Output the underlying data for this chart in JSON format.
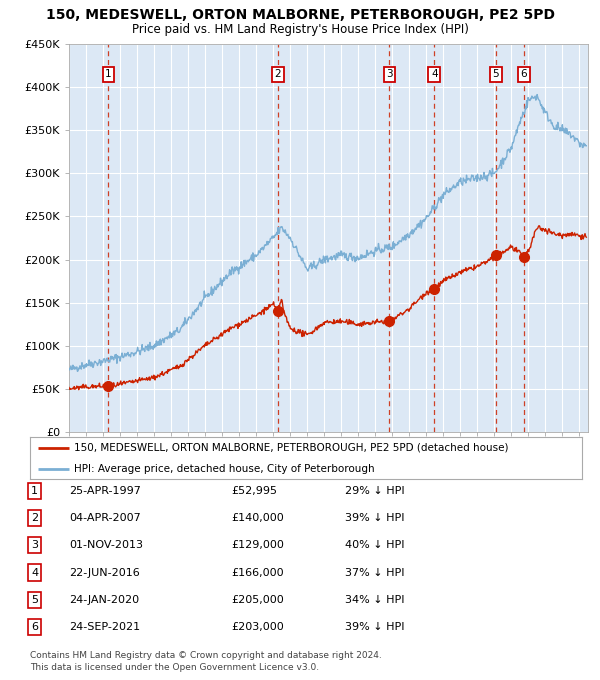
{
  "title1": "150, MEDESWELL, ORTON MALBORNE, PETERBOROUGH, PE2 5PD",
  "title2": "Price paid vs. HM Land Registry's House Price Index (HPI)",
  "legend_line1": "150, MEDESWELL, ORTON MALBORNE, PETERBOROUGH, PE2 5PD (detached house)",
  "legend_line2": "HPI: Average price, detached house, City of Peterborough",
  "footer1": "Contains HM Land Registry data © Crown copyright and database right 2024.",
  "footer2": "This data is licensed under the Open Government Licence v3.0.",
  "sale_points": [
    {
      "num": 1,
      "date": "25-APR-1997",
      "price": 52995,
      "pct": "29% ↓ HPI",
      "year": 1997.32
    },
    {
      "num": 2,
      "date": "04-APR-2007",
      "price": 140000,
      "pct": "39% ↓ HPI",
      "year": 2007.26
    },
    {
      "num": 3,
      "date": "01-NOV-2013",
      "price": 129000,
      "pct": "40% ↓ HPI",
      "year": 2013.83
    },
    {
      "num": 4,
      "date": "22-JUN-2016",
      "price": 166000,
      "pct": "37% ↓ HPI",
      "year": 2016.47
    },
    {
      "num": 5,
      "date": "24-JAN-2020",
      "price": 205000,
      "pct": "34% ↓ HPI",
      "year": 2020.07
    },
    {
      "num": 6,
      "date": "24-SEP-2021",
      "price": 203000,
      "pct": "39% ↓ HPI",
      "year": 2021.73
    }
  ],
  "table_rows": [
    [
      "1",
      "25-APR-1997",
      "£52,995",
      "29% ↓ HPI"
    ],
    [
      "2",
      "04-APR-2007",
      "£140,000",
      "39% ↓ HPI"
    ],
    [
      "3",
      "01-NOV-2013",
      "£129,000",
      "40% ↓ HPI"
    ],
    [
      "4",
      "22-JUN-2016",
      "£166,000",
      "37% ↓ HPI"
    ],
    [
      "5",
      "24-JAN-2020",
      "£205,000",
      "34% ↓ HPI"
    ],
    [
      "6",
      "24-SEP-2021",
      "£203,000",
      "39% ↓ HPI"
    ]
  ],
  "hpi_color": "#7bafd4",
  "sold_color": "#cc2200",
  "bg_color": "#dce8f5",
  "vline_color": "#cc2200",
  "ylim": [
    0,
    450000
  ],
  "xlim_start": 1995.0,
  "xlim_end": 2025.5,
  "yticks": [
    0,
    50000,
    100000,
    150000,
    200000,
    250000,
    300000,
    350000,
    400000,
    450000
  ],
  "ytick_labels": [
    "£0",
    "£50K",
    "£100K",
    "£150K",
    "£200K",
    "£250K",
    "£300K",
    "£350K",
    "£400K",
    "£450K"
  ]
}
